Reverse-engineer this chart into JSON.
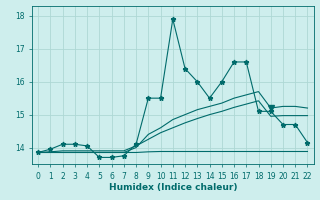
{
  "xlabel": "Humidex (Indice chaleur)",
  "xlim": [
    -0.5,
    22.5
  ],
  "ylim": [
    13.5,
    18.3
  ],
  "yticks": [
    14,
    15,
    16,
    17,
    18
  ],
  "xticks": [
    0,
    1,
    2,
    3,
    4,
    5,
    6,
    7,
    8,
    9,
    10,
    11,
    12,
    13,
    14,
    15,
    16,
    17,
    18,
    19,
    20,
    21,
    22
  ],
  "bg_color": "#ceeeed",
  "grid_color": "#aed8d5",
  "line_color": "#006b6b",
  "series": {
    "main": [
      13.85,
      13.95,
      14.1,
      14.1,
      14.05,
      13.7,
      13.7,
      13.75,
      14.1,
      15.5,
      15.5,
      17.9,
      16.4,
      16.0,
      15.5,
      16.0,
      16.6,
      16.6,
      15.1,
      15.1,
      14.7,
      14.7,
      14.15
    ],
    "line1": [
      13.85,
      13.85,
      13.85,
      13.85,
      13.85,
      13.85,
      13.85,
      13.85,
      14.0,
      14.4,
      14.6,
      14.85,
      15.0,
      15.15,
      15.25,
      15.35,
      15.5,
      15.6,
      15.7,
      15.2,
      15.25,
      15.25,
      15.2
    ],
    "line2": [
      13.85,
      13.87,
      13.9,
      13.9,
      13.9,
      13.9,
      13.9,
      13.9,
      14.05,
      14.25,
      14.45,
      14.6,
      14.75,
      14.88,
      15.0,
      15.1,
      15.22,
      15.32,
      15.42,
      14.95,
      14.97,
      14.97,
      14.97
    ],
    "line3": [
      13.85,
      13.85,
      13.85,
      13.85,
      13.85,
      13.85,
      13.85,
      13.85,
      13.85,
      13.87,
      13.88,
      13.88,
      13.88,
      13.88,
      13.88,
      13.88,
      13.88,
      13.88,
      13.88,
      13.88,
      13.88,
      13.88,
      13.88
    ]
  },
  "main_markers": [
    0,
    1,
    2,
    3,
    4,
    5,
    6,
    7,
    8,
    9,
    10,
    11,
    12,
    13,
    14,
    15,
    16,
    17,
    18,
    19,
    20,
    21,
    22
  ],
  "triangle_x": 19,
  "triangle_y": 15.2
}
